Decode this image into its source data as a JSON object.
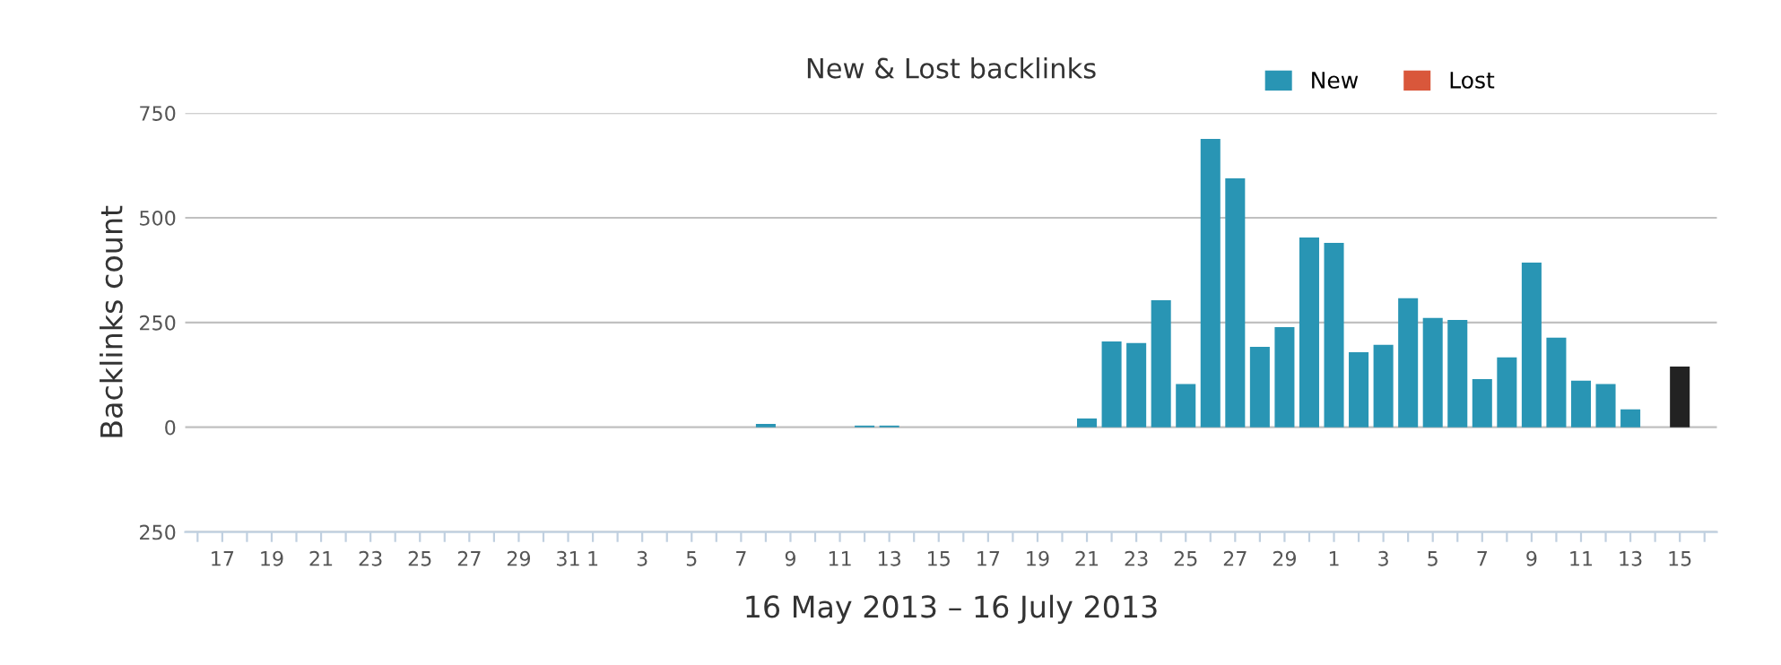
{
  "chart_data": {
    "type": "bar",
    "title": "New & Lost backlinks",
    "xlabel": "16 May 2013 – 16 July 2013",
    "ylabel": "Backlinks count",
    "categories": [
      null,
      "17",
      null,
      "19",
      null,
      "21",
      null,
      "23",
      null,
      "25",
      null,
      "27",
      null,
      "29",
      null,
      "31",
      "1",
      null,
      "3",
      null,
      "5",
      null,
      "7",
      null,
      "9",
      null,
      "11",
      null,
      "13",
      null,
      "15",
      null,
      "17",
      null,
      "19",
      null,
      "21",
      null,
      "23",
      null,
      "25",
      null,
      "27",
      null,
      "29",
      null,
      "1",
      null,
      "3",
      null,
      "5",
      null,
      "7",
      null,
      "9",
      null,
      "11",
      null,
      "13",
      null,
      "15",
      null
    ],
    "series": [
      {
        "name": "New",
        "color": "#2995b4",
        "values": [
          0,
          0,
          0,
          0,
          0,
          0,
          0,
          0,
          0,
          0,
          0,
          0,
          0,
          0,
          0,
          0,
          0,
          0,
          0,
          0,
          0,
          0,
          0,
          8,
          0,
          0,
          0,
          4,
          4,
          0,
          0,
          0,
          0,
          0,
          0,
          0,
          21,
          205,
          201,
          303,
          103,
          688,
          594,
          192,
          239,
          453,
          440,
          179,
          197,
          308,
          261,
          256,
          115,
          167,
          393,
          214,
          111,
          103,
          43,
          0,
          145,
          0
        ],
        "colors": [
          "#2995b4",
          "#2995b4",
          "#2995b4",
          "#2995b4",
          "#2995b4",
          "#2995b4",
          "#2995b4",
          "#2995b4",
          "#2995b4",
          "#2995b4",
          "#2995b4",
          "#2995b4",
          "#2995b4",
          "#2995b4",
          "#2995b4",
          "#2995b4",
          "#2995b4",
          "#2995b4",
          "#2995b4",
          "#2995b4",
          "#2995b4",
          "#2995b4",
          "#2995b4",
          "#2995b4",
          "#2995b4",
          "#2995b4",
          "#2995b4",
          "#2995b4",
          "#2995b4",
          "#2995b4",
          "#2995b4",
          "#2995b4",
          "#2995b4",
          "#2995b4",
          "#2995b4",
          "#2995b4",
          "#2995b4",
          "#2995b4",
          "#2995b4",
          "#2995b4",
          "#2995b4",
          "#2995b4",
          "#2995b4",
          "#2995b4",
          "#2995b4",
          "#2995b4",
          "#2995b4",
          "#2995b4",
          "#2995b4",
          "#2995b4",
          "#2995b4",
          "#2995b4",
          "#2995b4",
          "#2995b4",
          "#2995b4",
          "#2995b4",
          "#2995b4",
          "#2995b4",
          "#2995b4",
          "#2995b4",
          "#222222",
          "#2995b4"
        ]
      },
      {
        "name": "Lost",
        "color": "#d9573b",
        "values": [
          0,
          0,
          0,
          0,
          0,
          0,
          0,
          0,
          0,
          0,
          0,
          0,
          0,
          0,
          0,
          0,
          0,
          0,
          0,
          0,
          0,
          0,
          0,
          0,
          0,
          0,
          0,
          0,
          0,
          0,
          0,
          0,
          0,
          0,
          0,
          0,
          0,
          0,
          0,
          0,
          0,
          0,
          0,
          0,
          0,
          0,
          0,
          0,
          0,
          0,
          0,
          0,
          0,
          0,
          0,
          0,
          0,
          0,
          0,
          0,
          0,
          0
        ]
      }
    ],
    "ylim": [
      -250,
      750
    ],
    "yticks": [
      {
        "value": -250,
        "label": "250"
      },
      0,
      250,
      500,
      750
    ],
    "grid": "y",
    "legend": "top right"
  }
}
